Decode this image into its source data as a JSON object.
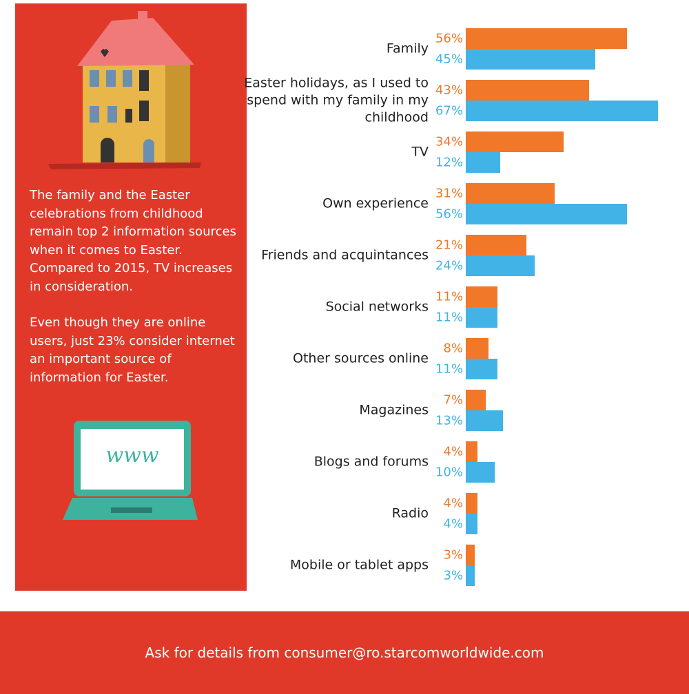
{
  "chart_data": {
    "type": "bar",
    "categories": [
      "Family",
      "Easter holidays, as I used to spend with my family in my childhood",
      "TV",
      "Own experience",
      "Friends and acquintances",
      "Social networks",
      "Other sources online",
      "Magazines",
      "Blogs and forums",
      "Radio",
      "Mobile or tablet apps"
    ],
    "series": [
      {
        "color": "#f07828",
        "values": [
          56,
          43,
          34,
          31,
          21,
          11,
          8,
          7,
          4,
          4,
          3
        ],
        "value_labels": [
          "56%",
          "43%",
          "34%",
          "31%",
          "21%",
          "11%",
          "8%",
          "7%",
          "4%",
          "4%",
          "3%"
        ]
      },
      {
        "color": "#41b3e6",
        "values": [
          45,
          67,
          12,
          56,
          24,
          11,
          11,
          13,
          10,
          4,
          3
        ],
        "value_labels": [
          "45%",
          "67%",
          "12%",
          "56%",
          "24%",
          "11%",
          "11%",
          "13%",
          "10%",
          "4%",
          "3%"
        ]
      }
    ]
  },
  "panel": {
    "paragraphs": [
      "The family and the Easter celebrations from childhood remain top 2 information sources when it comes to Easter. Compared to 2015, TV increases in consideration.",
      "Even though they are online users, just 23% consider internet an important source of information for Easter."
    ],
    "laptop_text": "www"
  },
  "footer": "Ask for details from consumer@ro.starcomworldwide.com"
}
